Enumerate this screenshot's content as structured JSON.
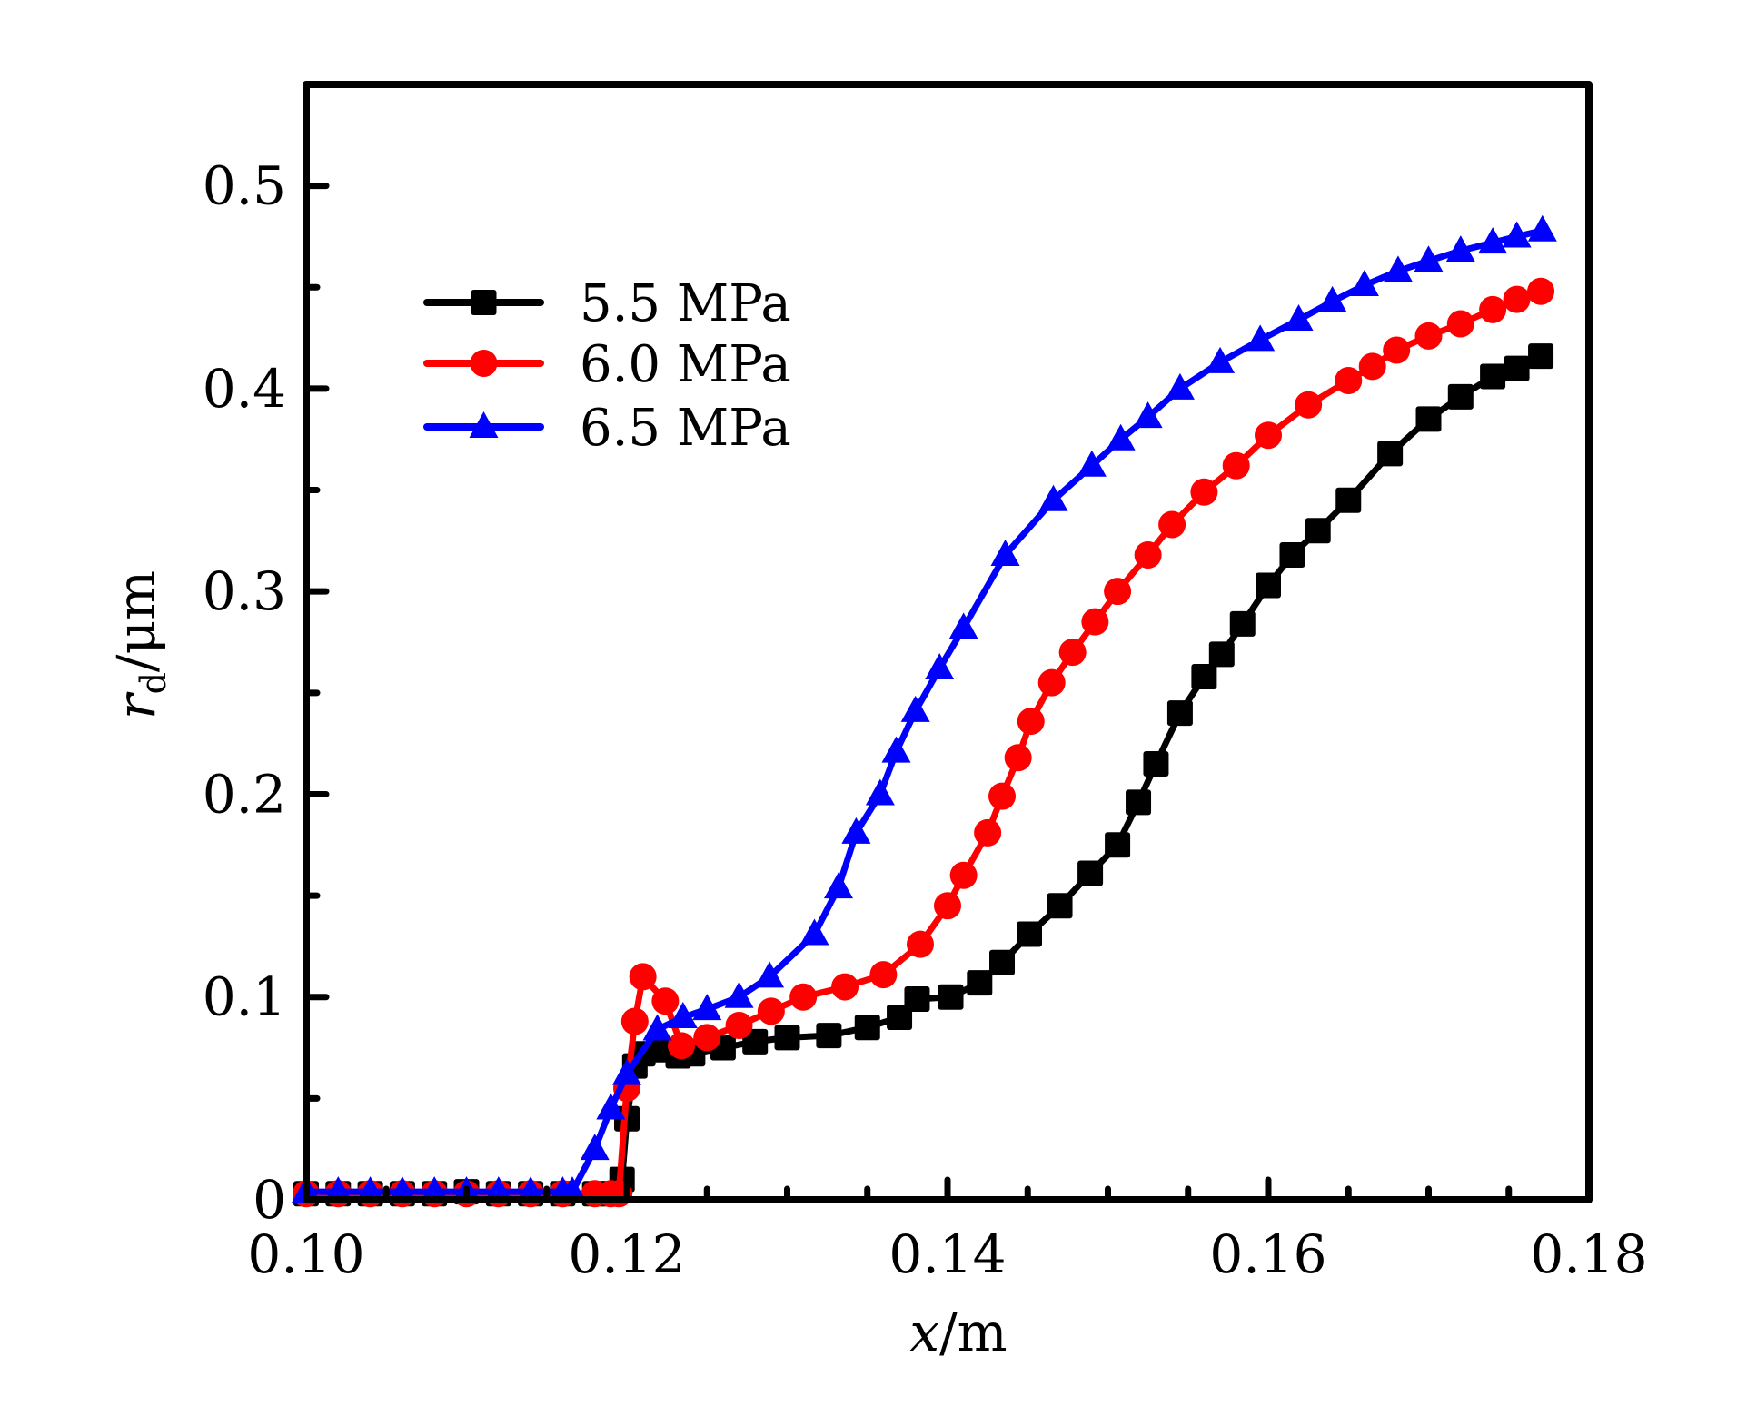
{
  "chart_data": {
    "type": "line",
    "title": "",
    "xlabel": "x/m",
    "xlabel_italic_part": "x",
    "xlabel_unit": "/m",
    "ylabel": "r_d/μm",
    "ylabel_var": "r",
    "ylabel_sub": "d",
    "ylabel_unit": "/μm",
    "xlim": [
      0.1,
      0.18
    ],
    "ylim": [
      0,
      0.55
    ],
    "x_ticks": [
      0.1,
      0.12,
      0.14,
      0.16,
      0.18
    ],
    "x_tick_labels": [
      "0.10",
      "0.12",
      "0.14",
      "0.16",
      "0.18"
    ],
    "x_minor_step": 0.005,
    "y_ticks": [
      0,
      0.1,
      0.2,
      0.3,
      0.4,
      0.5
    ],
    "y_tick_labels": [
      "0",
      "0.1",
      "0.2",
      "0.3",
      "0.4",
      "0.5"
    ],
    "y_minor_step": 0.05,
    "grid": false,
    "legend_position": "top-left",
    "series": [
      {
        "name": "5.5 MPa",
        "color": "#000000",
        "marker": "square",
        "x": [
          0.1,
          0.102,
          0.104,
          0.106,
          0.108,
          0.11,
          0.112,
          0.114,
          0.116,
          0.118,
          0.119,
          0.1197,
          0.12,
          0.1205,
          0.121,
          0.122,
          0.1232,
          0.1241,
          0.126,
          0.128,
          0.13,
          0.1326,
          0.135,
          0.137,
          0.1381,
          0.1402,
          0.142,
          0.1434,
          0.1451,
          0.147,
          0.1489,
          0.1506,
          0.1519,
          0.153,
          0.1545,
          0.156,
          0.1571,
          0.1584,
          0.16,
          0.1615,
          0.1631,
          0.165,
          0.1676,
          0.17,
          0.172,
          0.174,
          0.1755,
          0.177
        ],
        "y": [
          0.003,
          0.003,
          0.003,
          0.003,
          0.003,
          0.004,
          0.003,
          0.003,
          0.003,
          0.003,
          0.003,
          0.01,
          0.04,
          0.066,
          0.072,
          0.074,
          0.071,
          0.072,
          0.075,
          0.078,
          0.08,
          0.081,
          0.085,
          0.09,
          0.099,
          0.1,
          0.107,
          0.117,
          0.131,
          0.145,
          0.161,
          0.175,
          0.196,
          0.215,
          0.24,
          0.258,
          0.269,
          0.284,
          0.303,
          0.318,
          0.33,
          0.345,
          0.368,
          0.385,
          0.396,
          0.406,
          0.41,
          0.416
        ]
      },
      {
        "name": "6.0 MPa",
        "color": "#ff0000",
        "marker": "circle",
        "x": [
          0.1,
          0.102,
          0.104,
          0.106,
          0.108,
          0.11,
          0.112,
          0.114,
          0.116,
          0.118,
          0.119,
          0.1195,
          0.12,
          0.1205,
          0.121,
          0.1224,
          0.1234,
          0.125,
          0.127,
          0.129,
          0.131,
          0.1336,
          0.136,
          0.1383,
          0.14,
          0.141,
          0.1425,
          0.1434,
          0.1444,
          0.1452,
          0.1465,
          0.1478,
          0.1492,
          0.1506,
          0.1525,
          0.154,
          0.156,
          0.158,
          0.16,
          0.1625,
          0.165,
          0.1665,
          0.168,
          0.17,
          0.172,
          0.174,
          0.1755,
          0.177
        ],
        "y": [
          0.003,
          0.003,
          0.003,
          0.003,
          0.003,
          0.003,
          0.003,
          0.003,
          0.003,
          0.003,
          0.003,
          0.003,
          0.055,
          0.088,
          0.11,
          0.098,
          0.076,
          0.08,
          0.086,
          0.093,
          0.1,
          0.105,
          0.111,
          0.126,
          0.145,
          0.16,
          0.181,
          0.199,
          0.218,
          0.236,
          0.255,
          0.27,
          0.285,
          0.3,
          0.318,
          0.333,
          0.349,
          0.362,
          0.377,
          0.392,
          0.404,
          0.411,
          0.419,
          0.426,
          0.432,
          0.439,
          0.444,
          0.448
        ]
      },
      {
        "name": "6.5 MPa",
        "color": "#0000ff",
        "marker": "triangle",
        "x": [
          0.1,
          0.102,
          0.104,
          0.106,
          0.108,
          0.11,
          0.112,
          0.114,
          0.116,
          0.1166,
          0.118,
          0.119,
          0.12,
          0.1219,
          0.1235,
          0.125,
          0.127,
          0.1289,
          0.1317,
          0.1332,
          0.1343,
          0.1358,
          0.1368,
          0.138,
          0.1395,
          0.141,
          0.1436,
          0.1466,
          0.149,
          0.1508,
          0.1525,
          0.1545,
          0.157,
          0.1595,
          0.1619,
          0.164,
          0.166,
          0.1681,
          0.17,
          0.172,
          0.174,
          0.1755,
          0.1771
        ],
        "y": [
          0.004,
          0.004,
          0.004,
          0.004,
          0.004,
          0.004,
          0.004,
          0.004,
          0.004,
          0.004,
          0.025,
          0.045,
          0.062,
          0.084,
          0.09,
          0.094,
          0.1,
          0.11,
          0.131,
          0.154,
          0.181,
          0.2,
          0.221,
          0.241,
          0.262,
          0.282,
          0.318,
          0.345,
          0.362,
          0.375,
          0.386,
          0.4,
          0.413,
          0.424,
          0.434,
          0.443,
          0.451,
          0.458,
          0.463,
          0.468,
          0.472,
          0.475,
          0.478
        ]
      }
    ]
  }
}
